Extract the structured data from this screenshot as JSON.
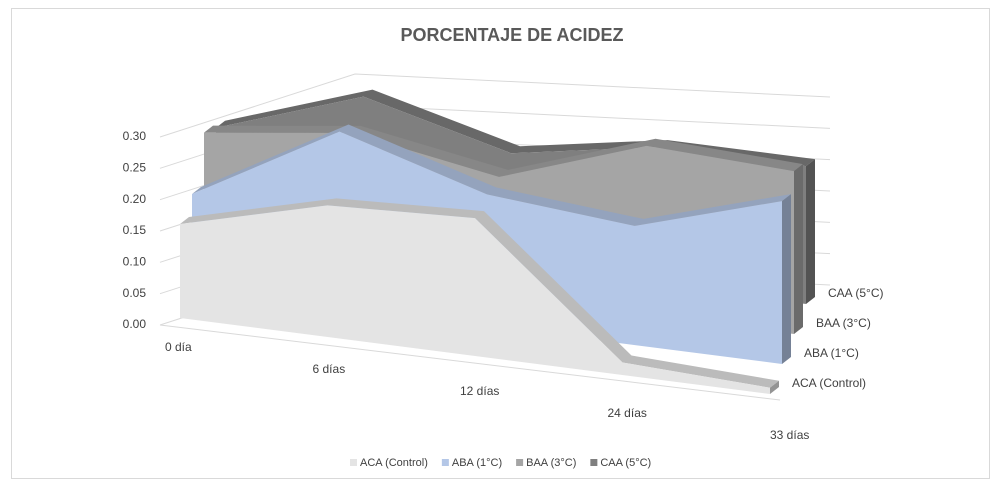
{
  "chart_data": {
    "type": "area3d",
    "title": "PORCENTAJE DE ACIDEZ",
    "categories": [
      "0 día",
      "6 días",
      "12 días",
      "24 días",
      "33 días"
    ],
    "series": [
      {
        "name": "ACA (Control)",
        "color": "#e4e4e4",
        "values": [
          0.15,
          0.21,
          0.22,
          0.02,
          0.01
        ]
      },
      {
        "name": "ABA (1°C)",
        "color": "#b4c7e7",
        "values": [
          0.15,
          0.28,
          0.21,
          0.19,
          0.26
        ]
      },
      {
        "name": "BAA (3°C)",
        "color": "#a5a5a5",
        "values": [
          0.2,
          0.23,
          0.19,
          0.27,
          0.26
        ]
      },
      {
        "name": "CAA (5°C)",
        "color": "#7f7f7f",
        "values": [
          0.16,
          0.24,
          0.18,
          0.22,
          0.22
        ]
      }
    ],
    "ylim": [
      0,
      0.3
    ],
    "yticks": [
      {
        "value": 0,
        "label": "0.00"
      },
      {
        "value": 0.05,
        "label": "0.05"
      },
      {
        "value": 0.1,
        "label": "0.10"
      },
      {
        "value": 0.15,
        "label": "0.15"
      },
      {
        "value": 0.2,
        "label": "0.20"
      },
      {
        "value": 0.25,
        "label": "0.25"
      },
      {
        "value": 0.3,
        "label": "0.30"
      }
    ],
    "grid": true,
    "legend": "bottom"
  }
}
